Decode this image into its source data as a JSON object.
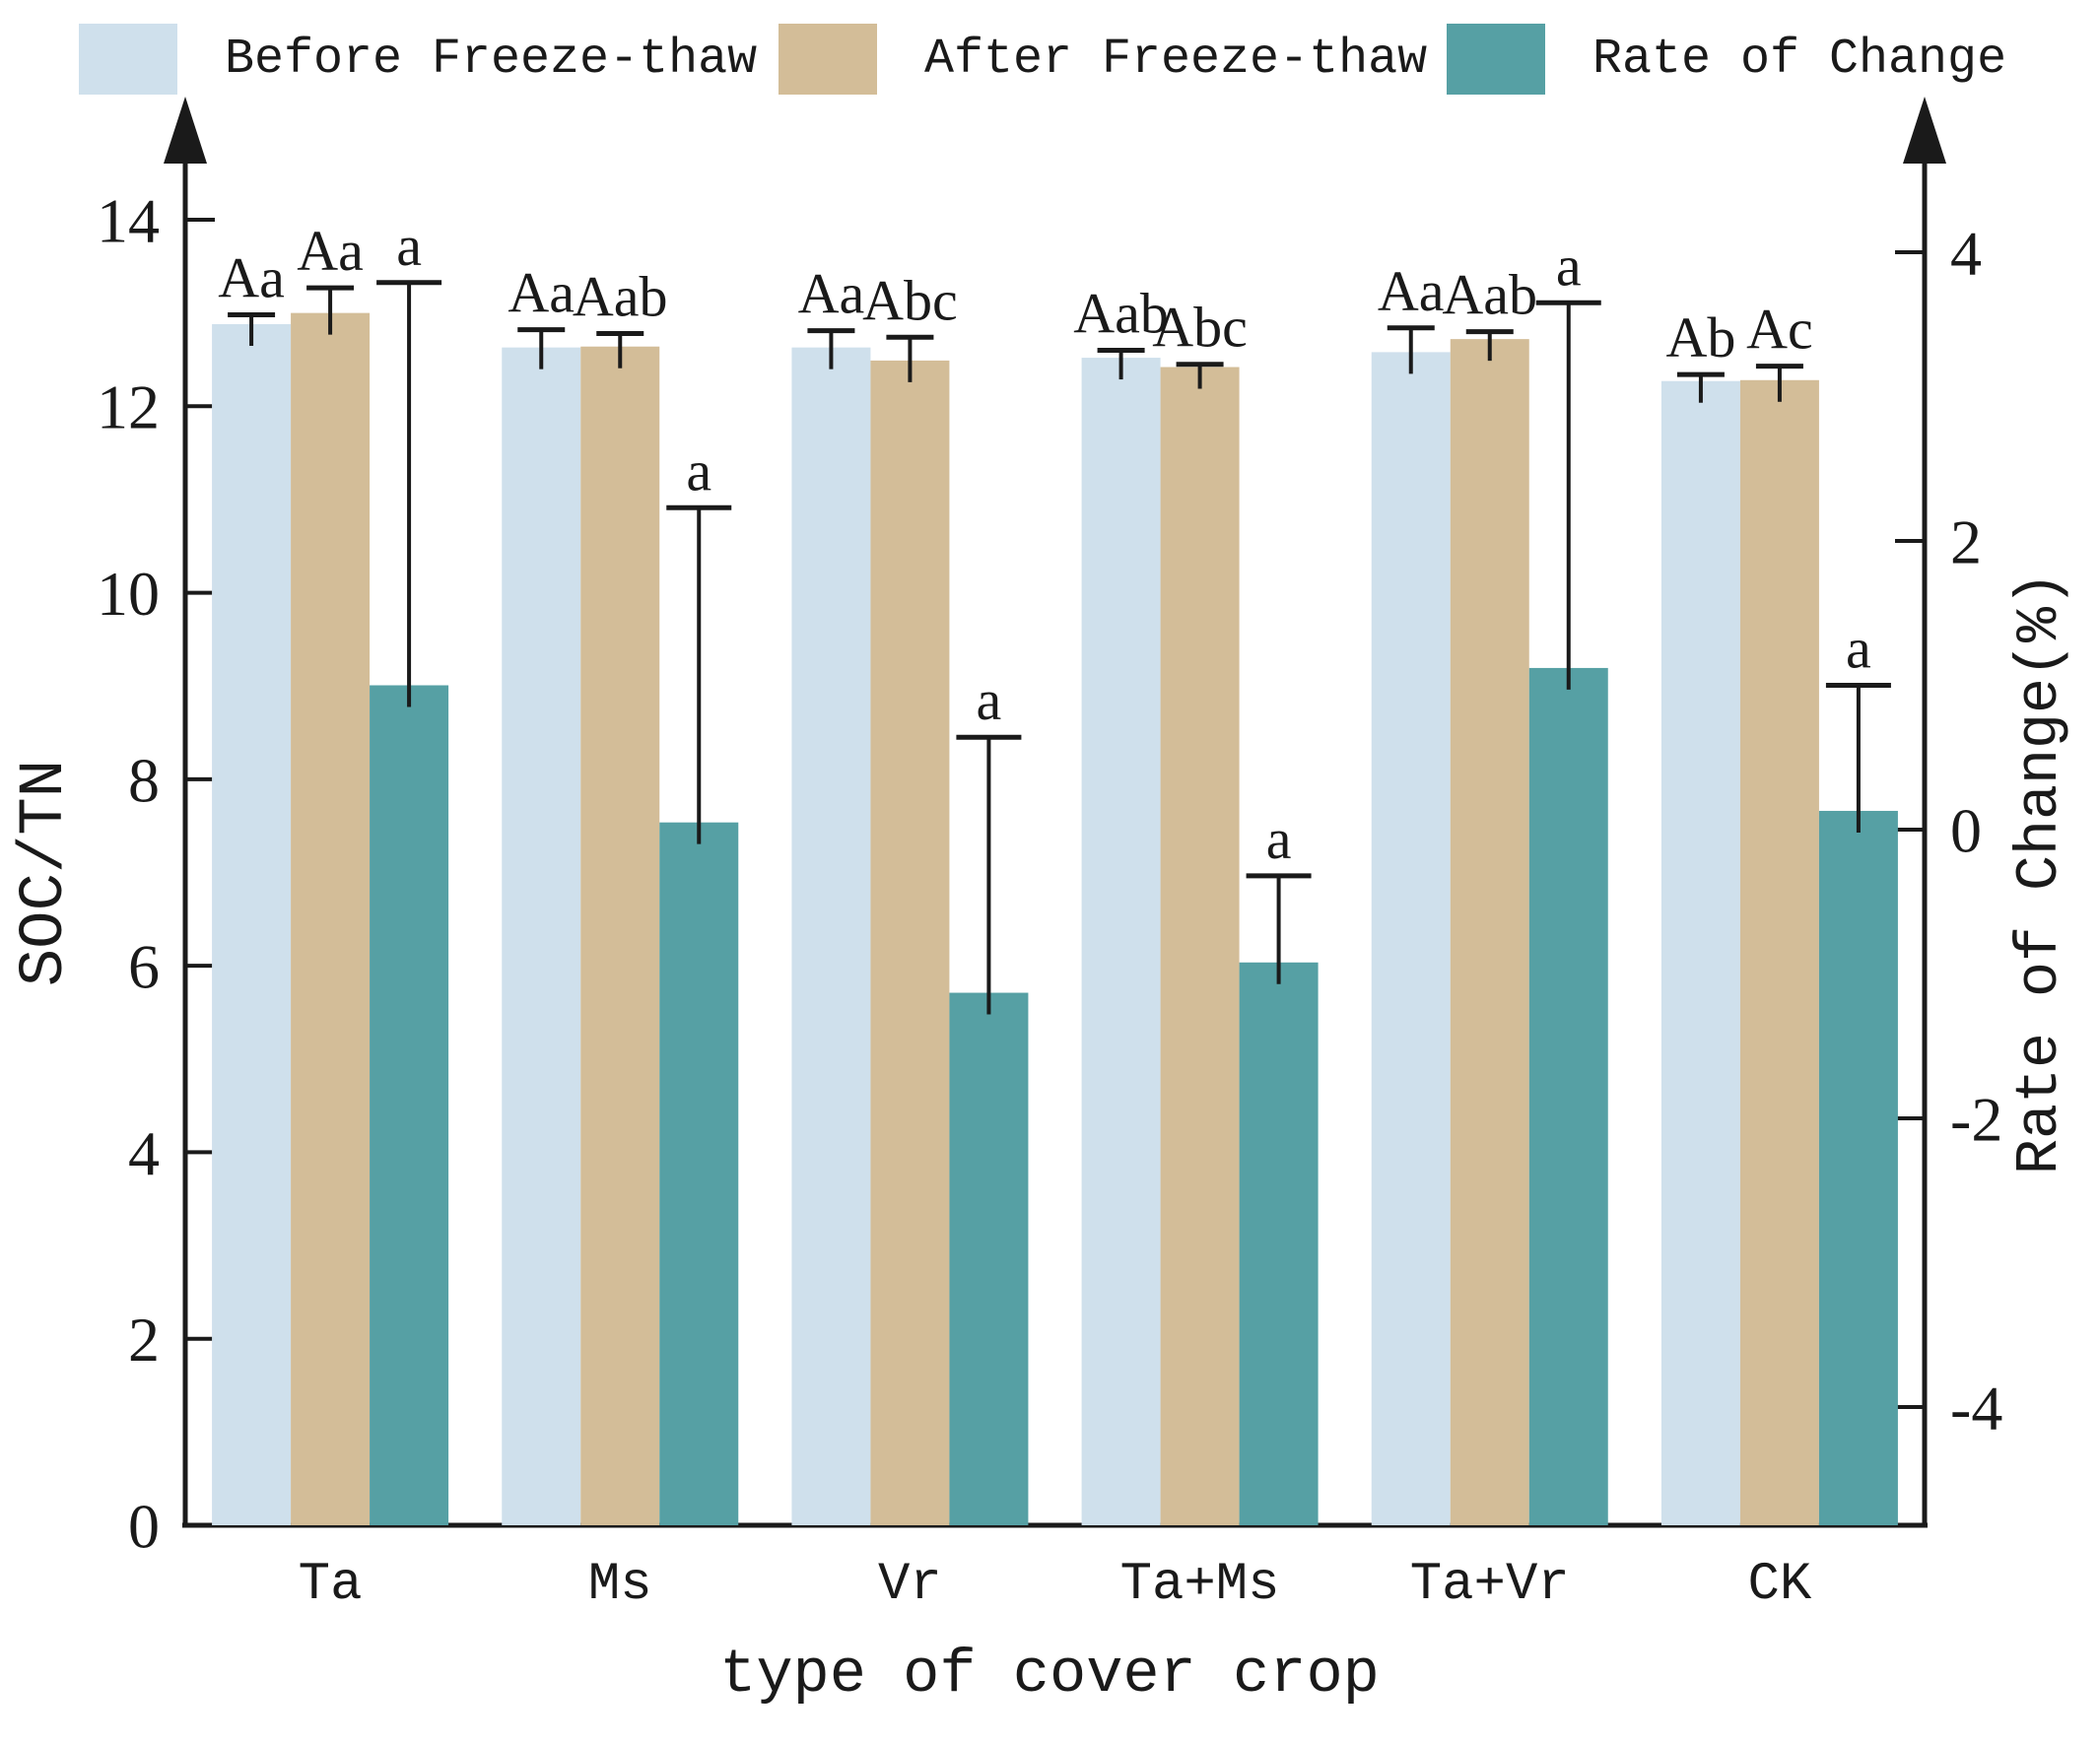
{
  "chart_data": {
    "type": "bar",
    "title": "",
    "xlabel": "type of cover crop",
    "ylabel_left": "SOC/TN",
    "ylabel_right": "Rate of Change(%)",
    "categories": [
      "Ta",
      "Ms",
      "Vr",
      "Ta+Ms",
      "Ta+Vr",
      "CK"
    ],
    "left_axis": {
      "label": "SOC/TN",
      "ticks": [
        0,
        2,
        4,
        6,
        8,
        10,
        12,
        14
      ],
      "range": [
        0,
        15.3
      ]
    },
    "right_axis": {
      "label": "Rate of Change(%)",
      "ticks": [
        -4,
        -2,
        0,
        2,
        4
      ],
      "range": [
        -4.8,
        5.1
      ]
    },
    "legend_position": "top",
    "grid": false,
    "series": [
      {
        "key": "before",
        "name": "Before Freeze-thaw",
        "axis": "left",
        "color": "#cfe0ec",
        "values": [
          12.88,
          12.63,
          12.63,
          12.52,
          12.58,
          12.27
        ],
        "errors": [
          0.1,
          0.19,
          0.18,
          0.08,
          0.26,
          0.07
        ],
        "letters": [
          "Aa",
          "Aa",
          "Aa",
          "Aab",
          "Aa",
          "Ab"
        ]
      },
      {
        "key": "after",
        "name": "After Freeze-thaw",
        "axis": "left",
        "color": "#d3bd98",
        "values": [
          13.0,
          12.64,
          12.49,
          12.42,
          12.72,
          12.28
        ],
        "errors": [
          0.27,
          0.14,
          0.25,
          0.03,
          0.08,
          0.15
        ],
        "letters": [
          "Aa",
          "Aab",
          "Abc",
          "Abc",
          "Aab",
          "Ac"
        ]
      },
      {
        "key": "rate",
        "name": "Rate of Change",
        "axis": "right",
        "color": "#56a0a4",
        "values": [
          1.0,
          0.05,
          -1.13,
          -0.92,
          1.12,
          0.13
        ],
        "errors": [
          2.79,
          2.18,
          1.77,
          0.6,
          2.53,
          0.87
        ],
        "letters": [
          "a",
          "a",
          "a",
          "a",
          "a",
          "a"
        ]
      }
    ]
  }
}
